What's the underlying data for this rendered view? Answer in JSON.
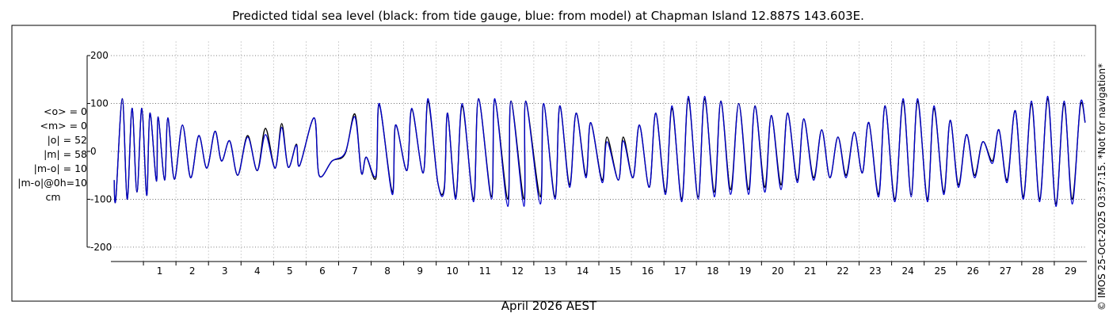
{
  "chart_data": {
    "type": "line",
    "title": "Predicted tidal sea level (black: from tide gauge, blue: from model) at Chapman Island 12.887S 143.603E.",
    "xlabel": "April 2026 AEST",
    "ylabel": "",
    "xlim": [
      0,
      30
    ],
    "ylim": [
      -230,
      230
    ],
    "yticks": [
      -200,
      -100,
      0,
      100,
      200
    ],
    "xticks": [
      1,
      2,
      3,
      4,
      5,
      6,
      7,
      8,
      9,
      10,
      11,
      12,
      13,
      14,
      15,
      16,
      17,
      18,
      19,
      20,
      21,
      22,
      23,
      24,
      25,
      26,
      27,
      28,
      29
    ],
    "grid": true,
    "x_units": "day of month",
    "series": [
      {
        "name": "from tide gauge",
        "color": "#000000",
        "points": [
          [
            0.1,
            -60
          ],
          [
            0.15,
            -100
          ],
          [
            0.35,
            110
          ],
          [
            0.5,
            -100
          ],
          [
            0.65,
            90
          ],
          [
            0.8,
            -85
          ],
          [
            0.95,
            90
          ],
          [
            1.1,
            -92
          ],
          [
            1.2,
            80
          ],
          [
            1.4,
            -62
          ],
          [
            1.45,
            72
          ],
          [
            1.65,
            -60
          ],
          [
            1.75,
            70
          ],
          [
            1.95,
            -58
          ],
          [
            2.2,
            55
          ],
          [
            2.45,
            -55
          ],
          [
            2.7,
            33
          ],
          [
            2.95,
            -35
          ],
          [
            3.2,
            42
          ],
          [
            3.4,
            -20
          ],
          [
            3.65,
            22
          ],
          [
            3.9,
            -50
          ],
          [
            4.2,
            33
          ],
          [
            4.5,
            -40
          ],
          [
            4.75,
            48
          ],
          [
            5.05,
            -35
          ],
          [
            5.25,
            58
          ],
          [
            5.45,
            -33
          ],
          [
            5.7,
            15
          ],
          [
            5.8,
            -30
          ],
          [
            6.25,
            70
          ],
          [
            6.4,
            -50
          ],
          [
            6.8,
            -20
          ],
          [
            7.2,
            -5
          ],
          [
            7.5,
            78
          ],
          [
            7.7,
            -45
          ],
          [
            7.85,
            -12
          ],
          [
            8.15,
            -55
          ],
          [
            8.25,
            98
          ],
          [
            8.65,
            -85
          ],
          [
            8.75,
            55
          ],
          [
            9.1,
            -40
          ],
          [
            9.25,
            88
          ],
          [
            9.6,
            -45
          ],
          [
            9.75,
            105
          ],
          [
            10.05,
            -65
          ],
          [
            10.25,
            -75
          ],
          [
            10.35,
            80
          ],
          [
            10.6,
            -95
          ],
          [
            10.8,
            95
          ],
          [
            11.15,
            -100
          ],
          [
            11.3,
            110
          ],
          [
            11.7,
            -95
          ],
          [
            11.8,
            108
          ],
          [
            12.2,
            -100
          ],
          [
            12.3,
            105
          ],
          [
            12.7,
            -100
          ],
          [
            12.75,
            105
          ],
          [
            13.2,
            -95
          ],
          [
            13.3,
            100
          ],
          [
            13.65,
            -95
          ],
          [
            13.8,
            95
          ],
          [
            14.1,
            -70
          ],
          [
            14.3,
            80
          ],
          [
            14.6,
            -50
          ],
          [
            14.75,
            60
          ],
          [
            15.1,
            -60
          ],
          [
            15.25,
            30
          ],
          [
            15.6,
            -60
          ],
          [
            15.75,
            30
          ],
          [
            16.05,
            -55
          ],
          [
            16.25,
            55
          ],
          [
            16.55,
            -75
          ],
          [
            16.75,
            80
          ],
          [
            17.05,
            -85
          ],
          [
            17.25,
            90
          ],
          [
            17.55,
            -100
          ],
          [
            17.75,
            110
          ],
          [
            18.05,
            -95
          ],
          [
            18.25,
            110
          ],
          [
            18.55,
            -85
          ],
          [
            18.75,
            105
          ],
          [
            19.05,
            -80
          ],
          [
            19.3,
            100
          ],
          [
            19.6,
            -80
          ],
          [
            19.8,
            95
          ],
          [
            20.1,
            -75
          ],
          [
            20.3,
            75
          ],
          [
            20.6,
            -70
          ],
          [
            20.8,
            80
          ],
          [
            21.1,
            -60
          ],
          [
            21.3,
            68
          ],
          [
            21.6,
            -55
          ],
          [
            21.85,
            45
          ],
          [
            22.1,
            -55
          ],
          [
            22.35,
            30
          ],
          [
            22.6,
            -50
          ],
          [
            22.85,
            40
          ],
          [
            23.1,
            -45
          ],
          [
            23.3,
            60
          ],
          [
            23.6,
            -90
          ],
          [
            23.8,
            95
          ],
          [
            24.1,
            -100
          ],
          [
            24.35,
            105
          ],
          [
            24.6,
            -90
          ],
          [
            24.8,
            105
          ],
          [
            25.1,
            -100
          ],
          [
            25.3,
            90
          ],
          [
            25.6,
            -85
          ],
          [
            25.8,
            65
          ],
          [
            26.05,
            -70
          ],
          [
            26.3,
            35
          ],
          [
            26.55,
            -50
          ],
          [
            26.8,
            20
          ],
          [
            27.1,
            -20
          ],
          [
            27.3,
            45
          ],
          [
            27.55,
            -60
          ],
          [
            27.8,
            85
          ],
          [
            28.05,
            -95
          ],
          [
            28.3,
            100
          ],
          [
            28.55,
            -100
          ],
          [
            28.8,
            110
          ],
          [
            29.05,
            -110
          ],
          [
            29.3,
            100
          ],
          [
            29.55,
            -100
          ],
          [
            29.8,
            95
          ],
          [
            29.95,
            60
          ]
        ]
      },
      {
        "name": "from model",
        "color": "#0000cc",
        "points": [
          [
            0.1,
            -60
          ],
          [
            0.15,
            -100
          ],
          [
            0.35,
            110
          ],
          [
            0.5,
            -100
          ],
          [
            0.65,
            90
          ],
          [
            0.8,
            -85
          ],
          [
            0.95,
            90
          ],
          [
            1.1,
            -92
          ],
          [
            1.2,
            80
          ],
          [
            1.4,
            -62
          ],
          [
            1.45,
            72
          ],
          [
            1.65,
            -60
          ],
          [
            1.75,
            70
          ],
          [
            1.95,
            -58
          ],
          [
            2.2,
            55
          ],
          [
            2.45,
            -55
          ],
          [
            2.7,
            33
          ],
          [
            2.95,
            -35
          ],
          [
            3.2,
            42
          ],
          [
            3.4,
            -20
          ],
          [
            3.65,
            22
          ],
          [
            3.9,
            -50
          ],
          [
            4.2,
            30
          ],
          [
            4.5,
            -40
          ],
          [
            4.75,
            35
          ],
          [
            5.05,
            -35
          ],
          [
            5.25,
            50
          ],
          [
            5.45,
            -33
          ],
          [
            5.7,
            13
          ],
          [
            5.8,
            -30
          ],
          [
            6.25,
            70
          ],
          [
            6.4,
            -50
          ],
          [
            6.8,
            -20
          ],
          [
            7.2,
            -3
          ],
          [
            7.5,
            72
          ],
          [
            7.7,
            -45
          ],
          [
            7.85,
            -12
          ],
          [
            8.15,
            -50
          ],
          [
            8.25,
            100
          ],
          [
            8.65,
            -90
          ],
          [
            8.75,
            55
          ],
          [
            9.1,
            -40
          ],
          [
            9.25,
            90
          ],
          [
            9.6,
            -45
          ],
          [
            9.75,
            110
          ],
          [
            10.05,
            -65
          ],
          [
            10.25,
            -80
          ],
          [
            10.35,
            80
          ],
          [
            10.6,
            -100
          ],
          [
            10.8,
            100
          ],
          [
            11.15,
            -105
          ],
          [
            11.3,
            110
          ],
          [
            11.7,
            -100
          ],
          [
            11.8,
            110
          ],
          [
            12.2,
            -115
          ],
          [
            12.3,
            105
          ],
          [
            12.7,
            -115
          ],
          [
            12.75,
            105
          ],
          [
            13.2,
            -110
          ],
          [
            13.3,
            100
          ],
          [
            13.65,
            -100
          ],
          [
            13.8,
            95
          ],
          [
            14.1,
            -75
          ],
          [
            14.3,
            80
          ],
          [
            14.6,
            -55
          ],
          [
            14.75,
            60
          ],
          [
            15.1,
            -65
          ],
          [
            15.25,
            20
          ],
          [
            15.6,
            -60
          ],
          [
            15.75,
            22
          ],
          [
            16.05,
            -55
          ],
          [
            16.25,
            55
          ],
          [
            16.55,
            -75
          ],
          [
            16.75,
            80
          ],
          [
            17.05,
            -90
          ],
          [
            17.25,
            95
          ],
          [
            17.55,
            -105
          ],
          [
            17.75,
            115
          ],
          [
            18.05,
            -100
          ],
          [
            18.25,
            115
          ],
          [
            18.55,
            -95
          ],
          [
            18.75,
            105
          ],
          [
            19.05,
            -90
          ],
          [
            19.3,
            100
          ],
          [
            19.6,
            -90
          ],
          [
            19.8,
            95
          ],
          [
            20.1,
            -85
          ],
          [
            20.3,
            75
          ],
          [
            20.6,
            -80
          ],
          [
            20.8,
            80
          ],
          [
            21.1,
            -65
          ],
          [
            21.3,
            68
          ],
          [
            21.6,
            -60
          ],
          [
            21.85,
            45
          ],
          [
            22.1,
            -55
          ],
          [
            22.35,
            30
          ],
          [
            22.6,
            -55
          ],
          [
            22.85,
            40
          ],
          [
            23.1,
            -45
          ],
          [
            23.3,
            60
          ],
          [
            23.6,
            -95
          ],
          [
            23.8,
            95
          ],
          [
            24.1,
            -105
          ],
          [
            24.35,
            110
          ],
          [
            24.6,
            -95
          ],
          [
            24.8,
            110
          ],
          [
            25.1,
            -105
          ],
          [
            25.3,
            95
          ],
          [
            25.6,
            -90
          ],
          [
            25.8,
            65
          ],
          [
            26.05,
            -75
          ],
          [
            26.3,
            35
          ],
          [
            26.55,
            -55
          ],
          [
            26.8,
            20
          ],
          [
            27.1,
            -25
          ],
          [
            27.3,
            45
          ],
          [
            27.55,
            -65
          ],
          [
            27.8,
            85
          ],
          [
            28.05,
            -100
          ],
          [
            28.3,
            105
          ],
          [
            28.55,
            -105
          ],
          [
            28.8,
            115
          ],
          [
            29.05,
            -115
          ],
          [
            29.3,
            105
          ],
          [
            29.55,
            -110
          ],
          [
            29.8,
            100
          ],
          [
            29.95,
            60
          ]
        ]
      }
    ]
  },
  "stats": {
    "mean_obs": "<o> = 0",
    "mean_model": "<m> = 0",
    "abs_obs": "|o| = 52",
    "abs_model": "|m| = 58",
    "abs_diff": "|m-o| = 10",
    "abs_diff_0h": "|m-o|@0h=10",
    "units": "cm"
  },
  "credit": "© IMOS 25-Oct-2025 03:57:15. *Not for navigation*"
}
